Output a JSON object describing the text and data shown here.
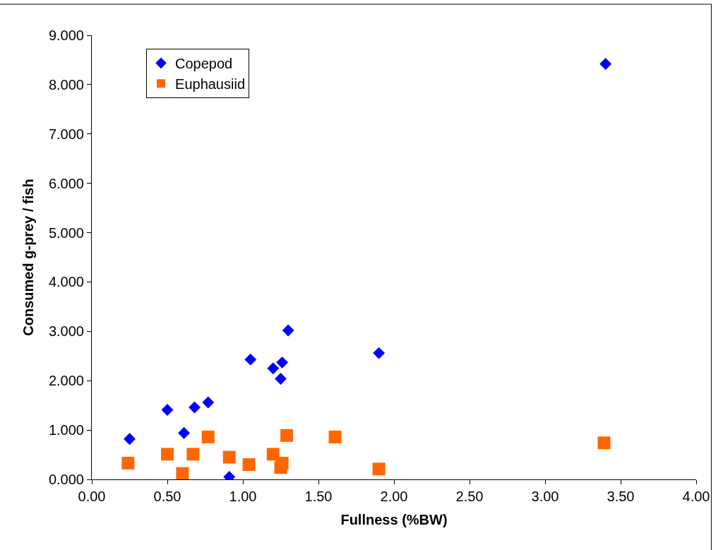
{
  "chart_data": {
    "type": "scatter",
    "xlabel": "Fullness (%BW)",
    "ylabel": "Consumed g-prey / fish",
    "xlim": [
      0,
      4
    ],
    "xticks": [
      {
        "value": 0,
        "label": "0.00"
      },
      {
        "value": 0.5,
        "label": "0.50"
      },
      {
        "value": 1,
        "label": "1.00"
      },
      {
        "value": 1.5,
        "label": "1.50"
      },
      {
        "value": 2,
        "label": "2.00"
      },
      {
        "value": 2.5,
        "label": "2.50"
      },
      {
        "value": 3,
        "label": "3.00"
      },
      {
        "value": 3.5,
        "label": "3.50"
      },
      {
        "value": 4,
        "label": "4.00"
      }
    ],
    "ylim": [
      0,
      9
    ],
    "yticks": [
      {
        "value": 0,
        "label": "0.000"
      },
      {
        "value": 1,
        "label": "1.000"
      },
      {
        "value": 2,
        "label": "2.000"
      },
      {
        "value": 3,
        "label": "3.000"
      },
      {
        "value": 4,
        "label": "4.000"
      },
      {
        "value": 5,
        "label": "5.000"
      },
      {
        "value": 6,
        "label": "6.000"
      },
      {
        "value": 7,
        "label": "7.000"
      },
      {
        "value": 8,
        "label": "8.000"
      },
      {
        "value": 9,
        "label": "9.000"
      }
    ],
    "legend": "top left",
    "series": [
      {
        "name": "Copepod",
        "color": "#0000ff",
        "marker": "diamond",
        "x": [
          0.25,
          0.5,
          0.68,
          0.77,
          0.61,
          0.91,
          1.05,
          1.2,
          1.26,
          1.25,
          1.3,
          1.9,
          3.4
        ],
        "values": [
          0.82,
          1.41,
          1.46,
          1.56,
          0.94,
          0.05,
          2.43,
          2.25,
          2.37,
          2.04,
          3.02,
          2.56,
          8.42
        ]
      },
      {
        "name": "Euphausiid",
        "color": "#ff6600",
        "marker": "square",
        "x": [
          0.24,
          0.5,
          0.6,
          0.67,
          0.77,
          0.91,
          1.04,
          1.2,
          1.26,
          1.25,
          1.29,
          1.61,
          1.9,
          3.39
        ],
        "values": [
          0.33,
          0.51,
          0.12,
          0.51,
          0.86,
          0.45,
          0.3,
          0.51,
          0.33,
          0.24,
          0.89,
          0.86,
          0.21,
          0.74
        ]
      }
    ]
  }
}
